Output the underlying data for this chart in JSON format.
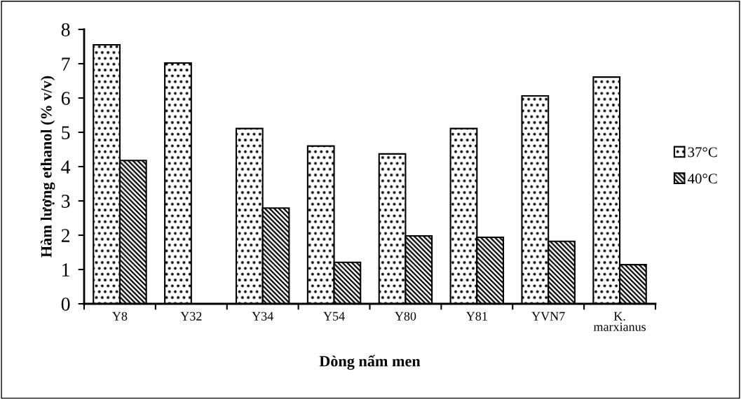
{
  "chart_data": {
    "type": "bar",
    "xlabel": "Dòng nấm men",
    "ylabel": "Hàm lượng ethanol (% v/v)",
    "categories": [
      "Y8",
      "Y32",
      "Y34",
      "Y54",
      "Y80",
      "Y81",
      "YVN7",
      "K.\nmarxianus"
    ],
    "series": [
      {
        "name": "37°C",
        "color": "#000000",
        "values": [
          7.55,
          7.02,
          5.11,
          4.6,
          4.37,
          5.11,
          6.06,
          6.61
        ]
      },
      {
        "name": "40°C",
        "color": "#000000",
        "values": [
          4.18,
          0,
          2.79,
          1.21,
          1.98,
          1.94,
          1.82,
          1.14
        ]
      }
    ],
    "ylim": [
      0,
      8
    ],
    "yticks": [
      0,
      1,
      2,
      3,
      4,
      5,
      6,
      7,
      8
    ],
    "grid": false,
    "legend": "right"
  }
}
